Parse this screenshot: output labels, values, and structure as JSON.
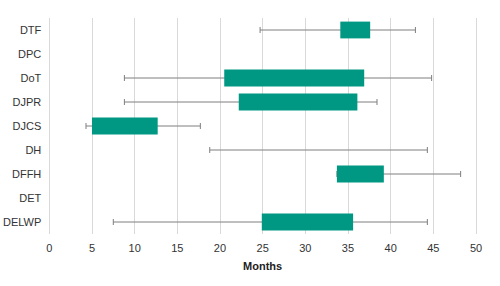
{
  "chart_data": {
    "type": "boxplot",
    "orientation": "horizontal",
    "categories": [
      "DTF",
      "DPC",
      "DoT",
      "DJPR",
      "DJCS",
      "DH",
      "DFFH",
      "DET",
      "DELWP"
    ],
    "series": [
      {
        "color": "#009882",
        "min": [
          24.7,
          null,
          8.8,
          8.8,
          4.3,
          18.8,
          33.7,
          null,
          7.5
        ],
        "q1": [
          34.1,
          null,
          20.5,
          22.2,
          5.0,
          null,
          33.7,
          null,
          24.9
        ],
        "q3": [
          37.6,
          null,
          36.9,
          36.1,
          12.7,
          null,
          39.2,
          null,
          35.6
        ],
        "max": [
          42.9,
          null,
          44.8,
          38.4,
          17.7,
          44.3,
          48.2,
          null,
          44.3
        ]
      }
    ],
    "xlabel": "Months",
    "xlim": [
      0,
      50
    ],
    "xticks": [
      0,
      5,
      10,
      15,
      20,
      25,
      30,
      35,
      40,
      45,
      50
    ],
    "grid": true
  }
}
